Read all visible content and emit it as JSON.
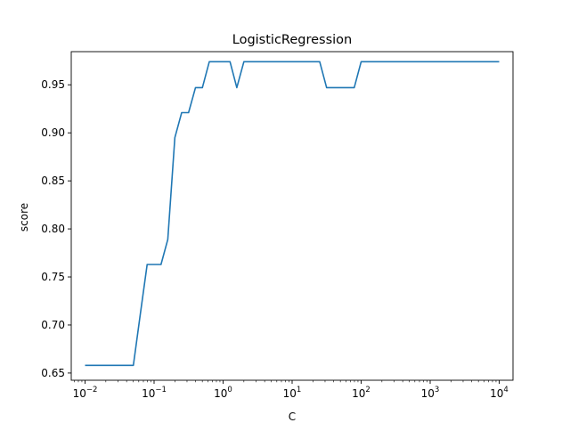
{
  "chart_data": {
    "type": "line",
    "title": "LogisticRegression",
    "xlabel": "C",
    "ylabel": "score",
    "xscale": "log",
    "xlim": [
      0.00631,
      15850
    ],
    "ylim": [
      0.6425,
      0.9845
    ],
    "grid": false,
    "legend": "none",
    "line_color": "#1f77b4",
    "x_ticks": [
      {
        "value": 0.01,
        "base": "10",
        "exp": "−2"
      },
      {
        "value": 0.1,
        "base": "10",
        "exp": "−1"
      },
      {
        "value": 1,
        "base": "10",
        "exp": "0"
      },
      {
        "value": 10,
        "base": "10",
        "exp": "1"
      },
      {
        "value": 100,
        "base": "10",
        "exp": "2"
      },
      {
        "value": 1000,
        "base": "10",
        "exp": "3"
      },
      {
        "value": 10000,
        "base": "10",
        "exp": "4"
      }
    ],
    "y_ticks": [
      {
        "value": 0.65,
        "label": "0.65"
      },
      {
        "value": 0.7,
        "label": "0.70"
      },
      {
        "value": 0.75,
        "label": "0.75"
      },
      {
        "value": 0.8,
        "label": "0.80"
      },
      {
        "value": 0.85,
        "label": "0.85"
      },
      {
        "value": 0.9,
        "label": "0.90"
      },
      {
        "value": 0.95,
        "label": "0.95"
      }
    ],
    "series": [
      {
        "x": [
          0.01,
          0.0126,
          0.0158,
          0.02,
          0.0251,
          0.0316,
          0.0398,
          0.0501,
          0.0631,
          0.0794,
          0.1,
          0.126,
          0.158,
          0.2,
          0.251,
          0.316,
          0.398,
          0.501,
          0.631,
          0.794,
          1.0,
          1.26,
          1.58,
          2.0,
          2.51,
          3.16,
          3.98,
          5.01,
          6.31,
          7.94,
          10.0,
          12.6,
          15.8,
          20.0,
          25.1,
          31.6,
          39.8,
          50.1,
          63.1,
          79.4,
          100,
          126,
          158,
          200,
          251,
          316,
          398,
          501,
          631,
          794,
          1000,
          1260,
          1580,
          2000,
          2510,
          3160,
          3980,
          5010,
          6310,
          7940,
          10000
        ],
        "values": [
          0.658,
          0.658,
          0.658,
          0.658,
          0.658,
          0.658,
          0.658,
          0.658,
          0.711,
          0.763,
          0.763,
          0.763,
          0.789,
          0.895,
          0.921,
          0.921,
          0.947,
          0.947,
          0.974,
          0.974,
          0.974,
          0.974,
          0.947,
          0.974,
          0.974,
          0.974,
          0.974,
          0.974,
          0.974,
          0.974,
          0.974,
          0.974,
          0.974,
          0.974,
          0.974,
          0.947,
          0.947,
          0.947,
          0.947,
          0.947,
          0.974,
          0.974,
          0.974,
          0.974,
          0.974,
          0.974,
          0.974,
          0.974,
          0.974,
          0.974,
          0.974,
          0.974,
          0.974,
          0.974,
          0.974,
          0.974,
          0.974,
          0.974,
          0.974,
          0.974,
          0.974
        ]
      }
    ]
  }
}
